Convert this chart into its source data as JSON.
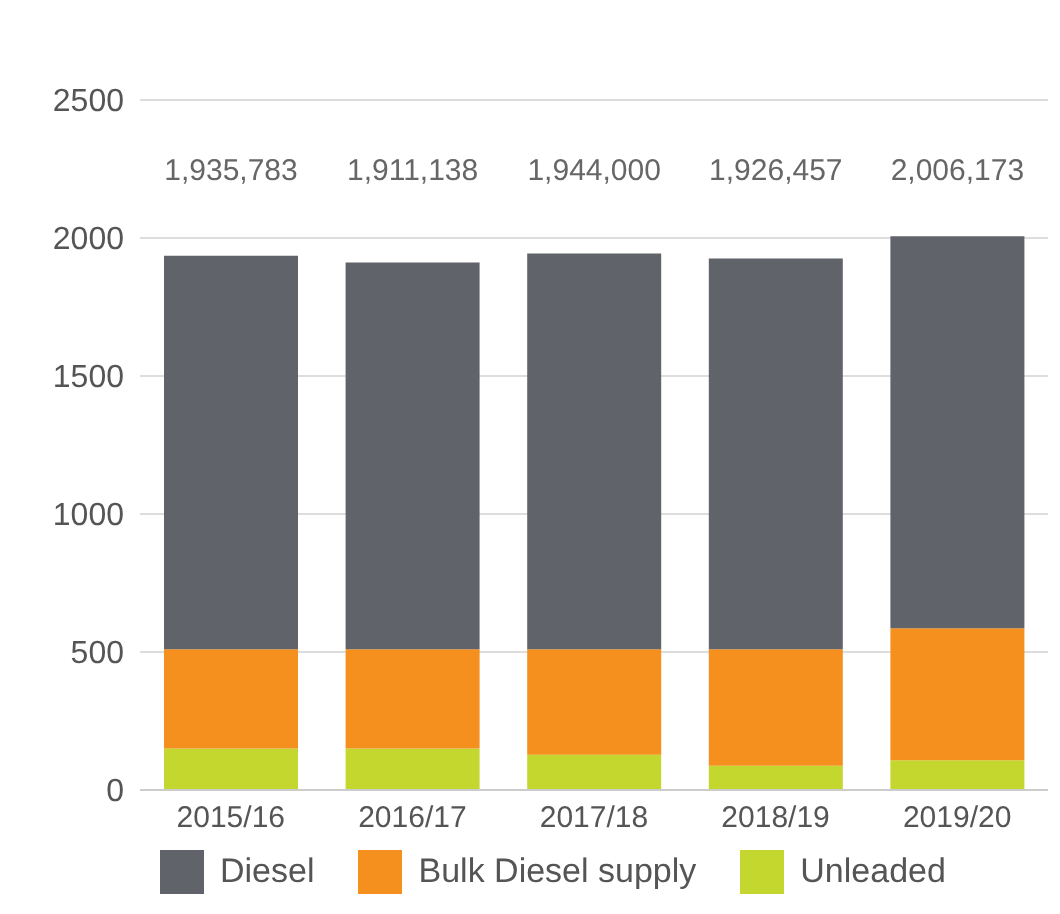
{
  "chart_data": {
    "type": "bar",
    "stacked": true,
    "categories": [
      "2015/16",
      "2016/17",
      "2017/18",
      "2018/19",
      "2019/20"
    ],
    "series": [
      {
        "name": "Unleaded",
        "color": "#c3d72e",
        "values": [
          150,
          150,
          128,
          88,
          108
        ]
      },
      {
        "name": "Bulk Diesel supply",
        "color": "#f5901e",
        "values": [
          360,
          360,
          382,
          422,
          478
        ]
      },
      {
        "name": "Diesel",
        "color": "#61636b",
        "values": [
          1426,
          1401,
          1434,
          1416,
          1420
        ]
      }
    ],
    "annotations": [
      "1,935,783",
      "1,911,138",
      "1,944,000",
      "1,926,457",
      "2,006,173"
    ],
    "ylim": [
      0,
      2500
    ],
    "yticks": [
      0,
      500,
      1000,
      1500,
      2000,
      2500
    ],
    "grid": "y",
    "legend": "bottom"
  }
}
